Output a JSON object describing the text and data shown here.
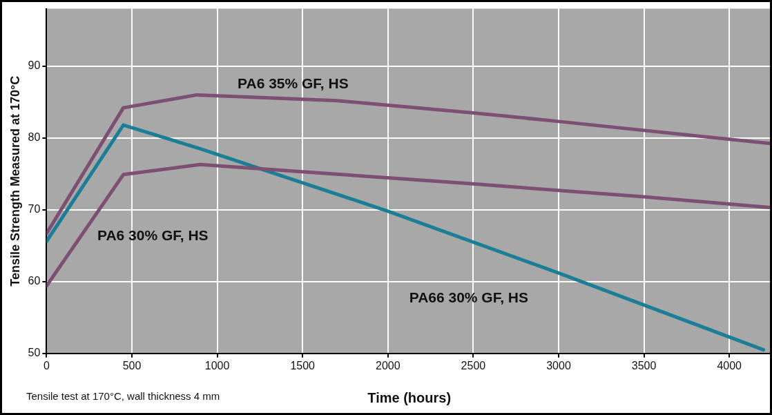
{
  "chart_data": {
    "type": "line",
    "xlabel": "Time (hours)",
    "ylabel": "Tensile Strength Measured at 170°C",
    "xlim": [
      0,
      4250
    ],
    "ylim": [
      50,
      98
    ],
    "xticks": [
      0,
      500,
      1000,
      1500,
      2000,
      2500,
      3000,
      3500,
      4000
    ],
    "yticks": [
      50,
      60,
      70,
      80,
      90
    ],
    "grid": true,
    "legend": false,
    "marker": "none",
    "line_style": "solid",
    "series": [
      {
        "name": "PA6 35% GF, HS",
        "color": "#7d4f73",
        "x": [
          0,
          450,
          880,
          1700,
          2500,
          3000,
          4250
        ],
        "values": [
          66.7,
          84.2,
          86,
          85.2,
          83.5,
          82.3,
          79.2
        ]
      },
      {
        "name": "PA6 30% GF, HS",
        "color": "#7d4f73",
        "x": [
          0,
          450,
          900,
          1500,
          2500,
          3500,
          4250
        ],
        "values": [
          59.4,
          74.9,
          76.3,
          75.3,
          73.6,
          71.8,
          70.3
        ]
      },
      {
        "name": "PA66 30% GF, HS",
        "color": "#1a7f96",
        "x": [
          0,
          450,
          900,
          2000,
          3000,
          4200
        ],
        "values": [
          65.6,
          81.8,
          78.5,
          69.8,
          61.2,
          50.5
        ]
      }
    ],
    "annotations": [
      "Tensile test at 170°C, wall thickness 4 mm"
    ]
  }
}
